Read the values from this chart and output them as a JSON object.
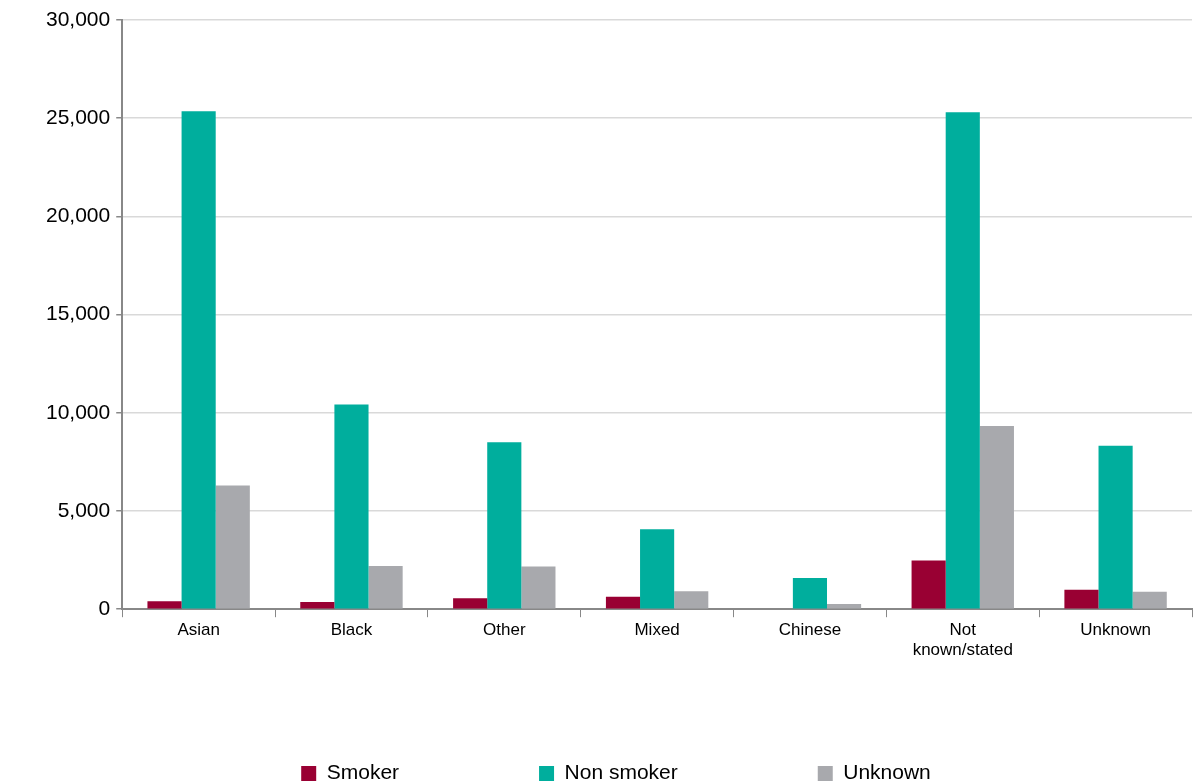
{
  "chart_data": {
    "type": "bar",
    "categories": [
      "Asian",
      "Black",
      "Other",
      "Mixed",
      "Chinese",
      "Not known/stated",
      "Unknown"
    ],
    "series": [
      {
        "name": "Smoker",
        "color": "#990033",
        "values": [
          400,
          370,
          560,
          640,
          0,
          2480,
          990
        ]
      },
      {
        "name": "Non smoker",
        "color": "#00ae9d",
        "values": [
          25350,
          10420,
          8500,
          4070,
          1590,
          25300,
          8320
        ]
      },
      {
        "name": "Unknown",
        "color": "#a8a9ad",
        "values": [
          6300,
          2200,
          2170,
          910,
          260,
          9330,
          890
        ]
      }
    ],
    "ylim": [
      0,
      30000
    ],
    "yticks": [
      0,
      {
        "value": 5000,
        "label": "5,000"
      },
      {
        "value": 10000,
        "label": "10,000"
      },
      {
        "value": 15000,
        "label": "15,000"
      },
      {
        "value": 20000,
        "label": "20,000"
      },
      {
        "value": 25000,
        "label": "25,000"
      },
      {
        "value": 30000,
        "label": "30,000"
      }
    ],
    "grid": "y",
    "legend": "bottom"
  }
}
